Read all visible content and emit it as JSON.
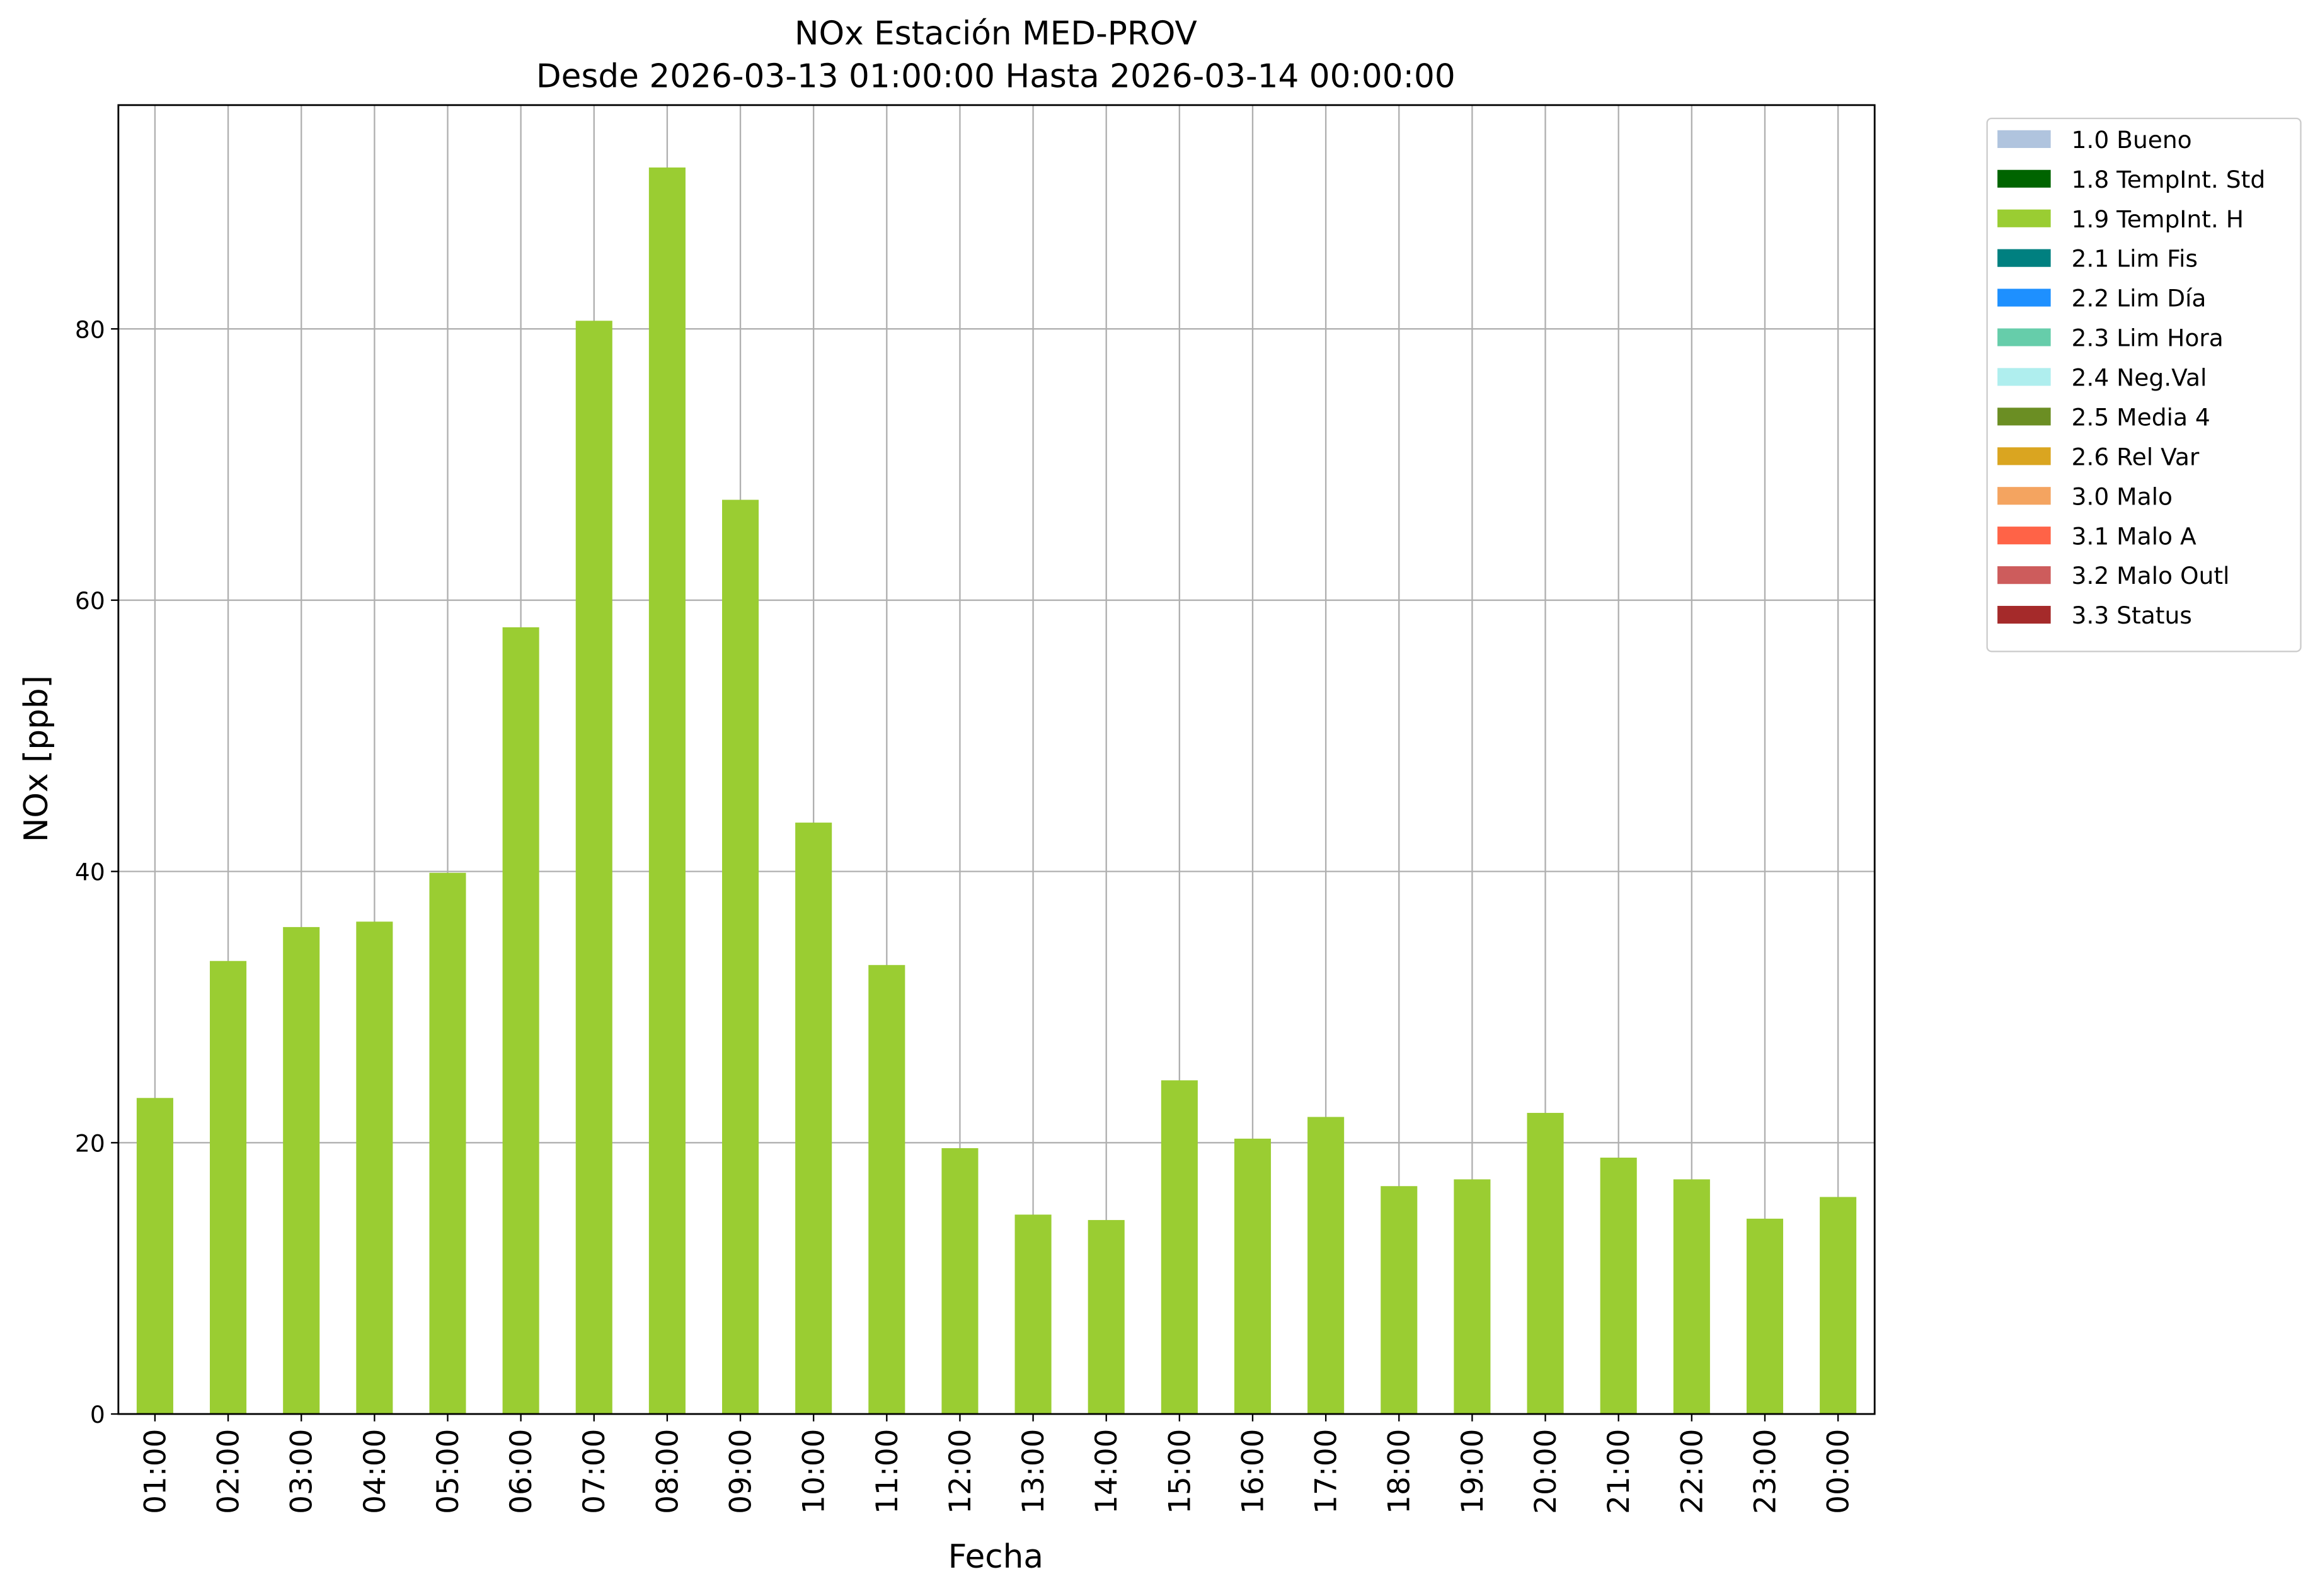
{
  "chart_data": {
    "type": "bar",
    "title": "NOx Estación MED-PROV",
    "subtitle": "Desde 2026-03-13 01:00:00 Hasta 2026-03-14 00:00:00",
    "x_label": "Fecha",
    "y_label": "NOx [ppb]",
    "categories": [
      "01:00",
      "02:00",
      "03:00",
      "04:00",
      "05:00",
      "06:00",
      "07:00",
      "08:00",
      "09:00",
      "10:00",
      "11:00",
      "12:00",
      "13:00",
      "14:00",
      "15:00",
      "16:00",
      "17:00",
      "18:00",
      "19:00",
      "20:00",
      "21:00",
      "22:00",
      "23:00",
      "00:00"
    ],
    "series": [
      {
        "name": "1.0 Bueno",
        "color": "#b0c4de"
      },
      {
        "name": "1.8 TempInt. Std",
        "color": "#006400"
      },
      {
        "name": "1.9 TempInt. H",
        "color": "#9acd32",
        "values": [
          23.3,
          33.4,
          35.9,
          36.3,
          39.9,
          58.0,
          80.6,
          91.9,
          67.4,
          43.6,
          33.1,
          19.6,
          14.7,
          14.3,
          24.6,
          20.3,
          21.9,
          16.8,
          17.3,
          22.2,
          18.9,
          17.3,
          14.4,
          16.0
        ]
      },
      {
        "name": "2.1 Lim Fis",
        "color": "#008080"
      },
      {
        "name": "2.2 Lim Día",
        "color": "#1e90ff"
      },
      {
        "name": "2.3 Lim Hora",
        "color": "#66cdaa"
      },
      {
        "name": "2.4 Neg.Val",
        "color": "#afeeee"
      },
      {
        "name": "2.5 Media 4",
        "color": "#6b8e23"
      },
      {
        "name": "2.6 Rel Var",
        "color": "#daa520"
      },
      {
        "name": "3.0 Malo",
        "color": "#f4a460"
      },
      {
        "name": "3.1 Malo A",
        "color": "#ff6347"
      },
      {
        "name": "3.2 Malo Outl",
        "color": "#cd5c5c"
      },
      {
        "name": "3.3 Status",
        "color": "#a52a2a"
      }
    ],
    "ylim": [
      0,
      96.5
    ],
    "yticks": [
      0,
      20,
      40,
      60,
      80
    ],
    "grid": true,
    "legend": "outside-upper-right"
  }
}
